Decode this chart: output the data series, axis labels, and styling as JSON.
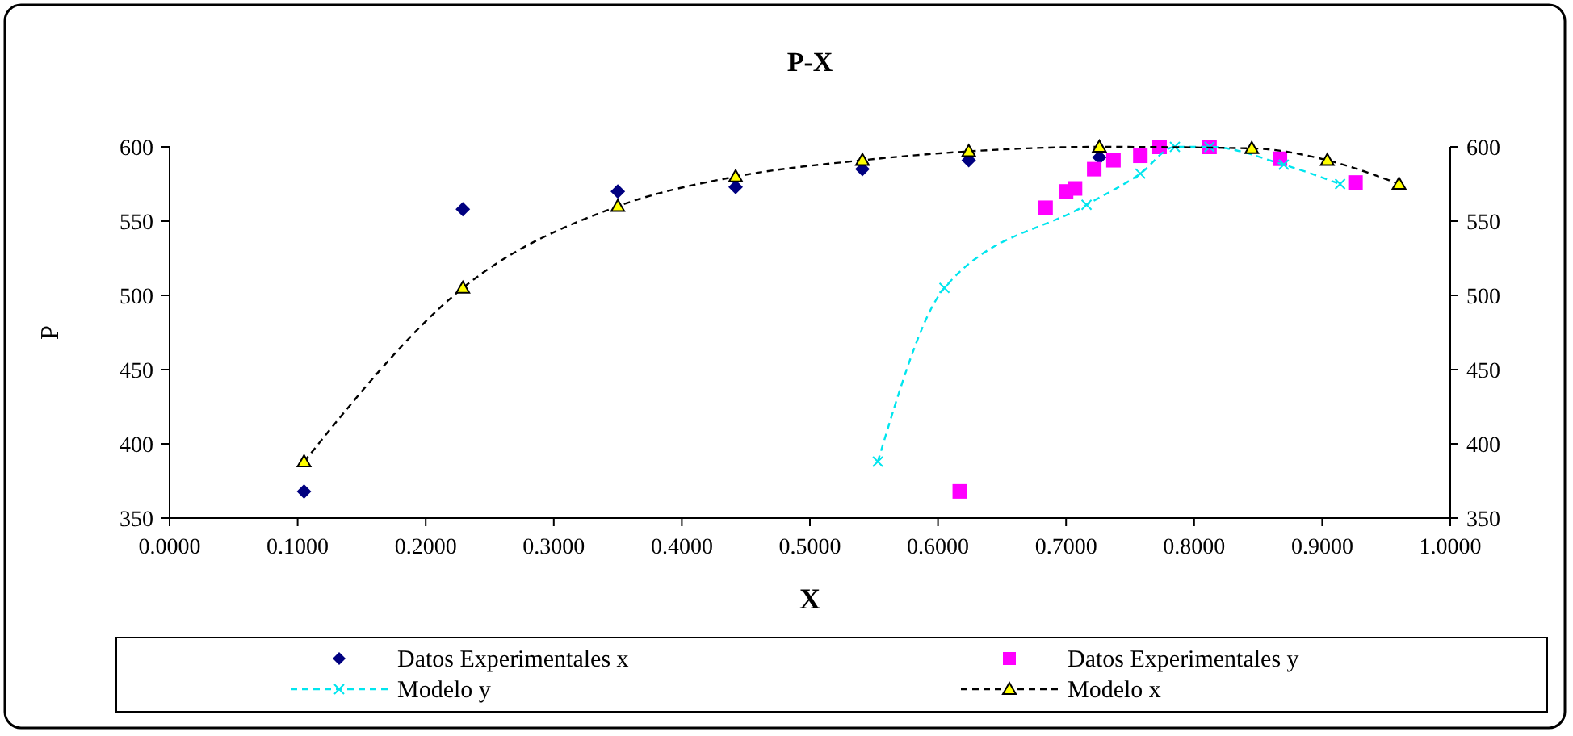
{
  "chart_data": {
    "type": "scatter",
    "title": "P-X",
    "xlabel": "X",
    "ylabel": "P",
    "xlim": [
      0,
      1
    ],
    "xticks": [
      {
        "value": 0,
        "label": "0.0000"
      },
      {
        "value": 0.1,
        "label": "0.1000"
      },
      {
        "value": 0.2,
        "label": "0.2000"
      },
      {
        "value": 0.3,
        "label": "0.3000"
      },
      {
        "value": 0.4,
        "label": "0.4000"
      },
      {
        "value": 0.5,
        "label": "0.5000"
      },
      {
        "value": 0.6,
        "label": "0.6000"
      },
      {
        "value": 0.7,
        "label": "0.7000"
      },
      {
        "value": 0.8,
        "label": "0.8000"
      },
      {
        "value": 0.9,
        "label": "0.9000"
      },
      {
        "value": 1,
        "label": "1.0000"
      }
    ],
    "ylim": [
      350,
      600
    ],
    "yticks": [
      350,
      400,
      450,
      500,
      550,
      600
    ],
    "y2lim": [
      350,
      600
    ],
    "y2ticks": [
      350,
      400,
      450,
      500,
      550,
      600
    ],
    "grid": false,
    "legend": "bottom",
    "series": [
      {
        "name": "Datos Experimentales x",
        "marker": "diamond",
        "color": "#000080",
        "x": [
          0.105,
          0.229,
          0.35,
          0.442,
          0.541,
          0.624,
          0.726
        ],
        "values": [
          368,
          558,
          570,
          573,
          585,
          591,
          593
        ]
      },
      {
        "name": "Datos Experimentales y",
        "marker": "square",
        "color": "#ff00ff",
        "x": [
          0.617,
          0.684,
          0.7,
          0.707,
          0.722,
          0.737,
          0.758,
          0.773,
          0.812,
          0.867,
          0.926
        ],
        "values": [
          368,
          559,
          570,
          572,
          585,
          591,
          594,
          600,
          600,
          592,
          576
        ]
      },
      {
        "name": "Modelo y",
        "type": "line",
        "marker": "cross",
        "line_style": "dashed",
        "color": "#00e5ee",
        "x": [
          0.553,
          0.605,
          0.716,
          0.758,
          0.785,
          0.812,
          0.87,
          0.914
        ],
        "values": [
          388,
          505,
          561,
          582,
          600,
          600,
          588,
          575
        ]
      },
      {
        "name": "Modelo x",
        "type": "line",
        "marker": "triangle",
        "line_style": "dashed",
        "color": "#000000",
        "x": [
          0.105,
          0.229,
          0.35,
          0.442,
          0.541,
          0.624,
          0.726,
          0.845,
          0.904,
          0.96
        ],
        "values": [
          388,
          505,
          560,
          580,
          591,
          597,
          600,
          599,
          591,
          575
        ]
      }
    ]
  }
}
